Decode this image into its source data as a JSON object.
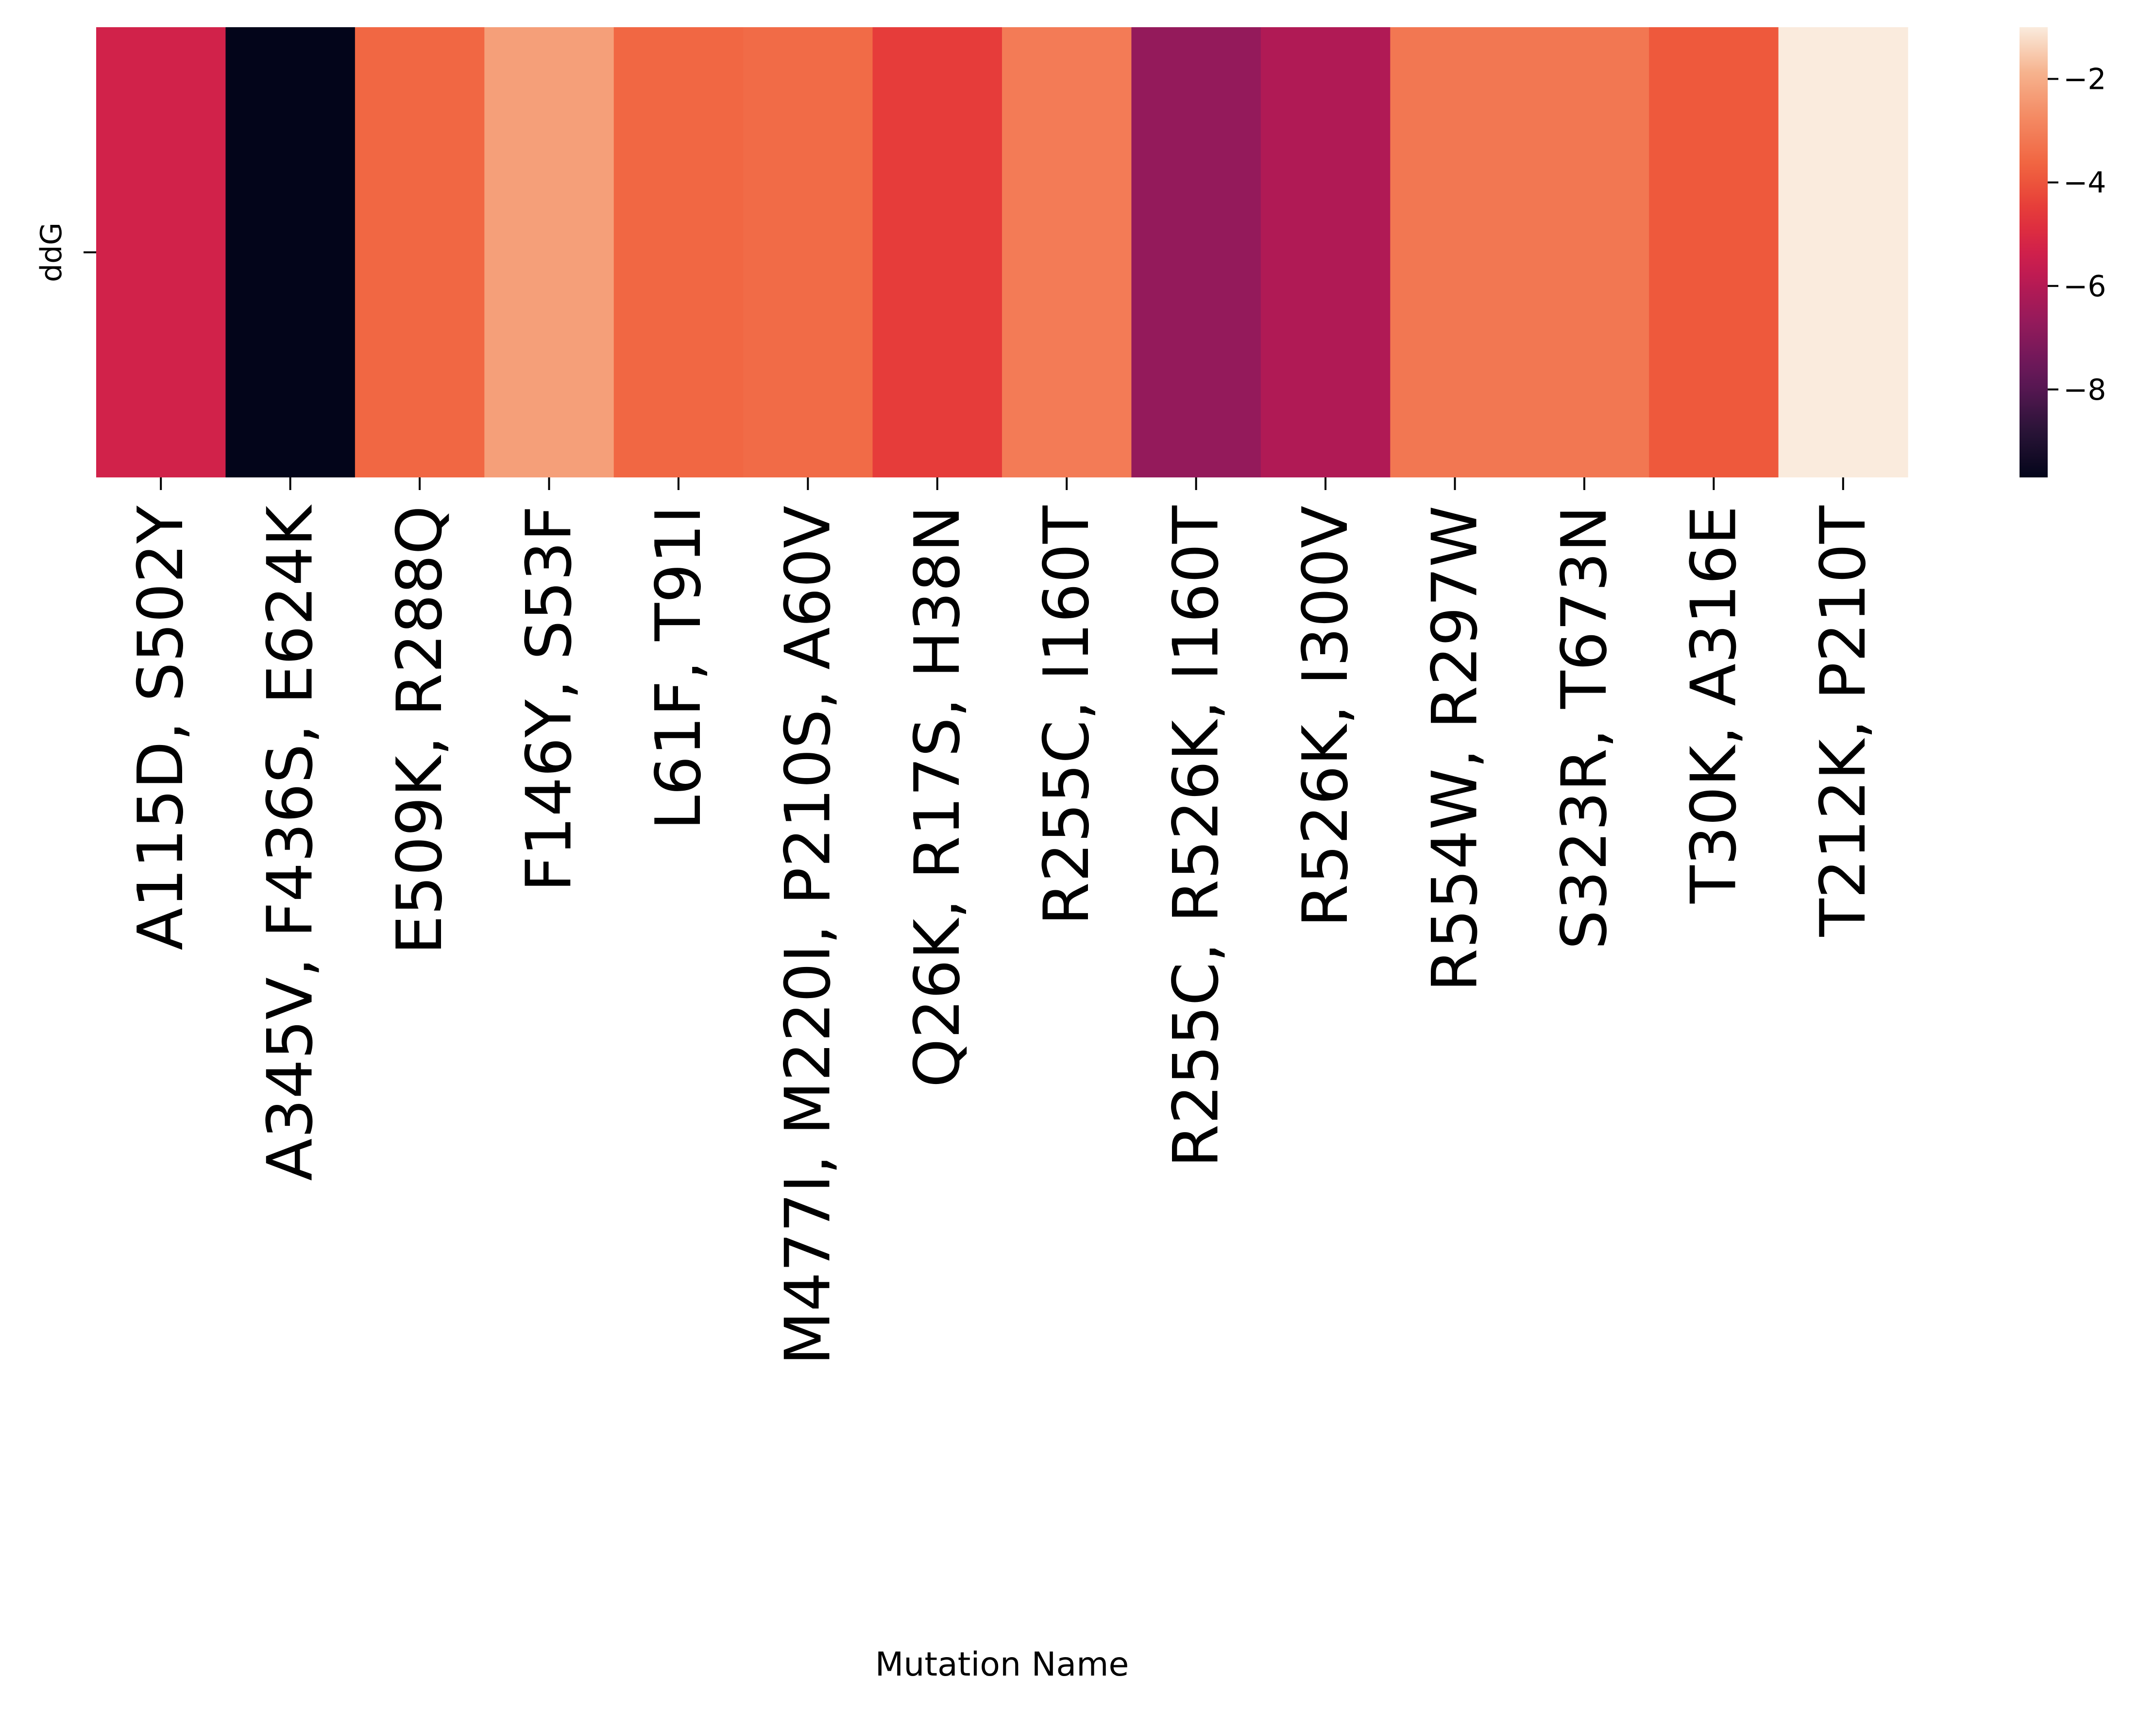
{
  "chart_data": {
    "type": "heatmap",
    "title": "",
    "xlabel": "Mutation Name",
    "ylabel": "",
    "row_labels": [
      "ddG"
    ],
    "categories": [
      "A115D, S502Y",
      "A345V, F436S, E624K",
      "E509K, R288Q",
      "F146Y, S53F",
      "L61F, T91I",
      "M477I, M220I, P210S, A60V",
      "Q26K, R17S, H38N",
      "R255C, I160T",
      "R255C, R526K, I160T",
      "R526K, I300V",
      "R554W, R297W",
      "S323R, T673N",
      "T30K, A316E",
      "T212K, P210T"
    ],
    "values": [
      -5.3,
      -9.7,
      -3.6,
      -2.3,
      -3.6,
      -3.5,
      -4.5,
      -3.1,
      -6.7,
      -6.1,
      -3.2,
      -3.2,
      -3.9,
      -1.0
    ],
    "colorbar": {
      "min": -9.7,
      "max": -1.0,
      "ticks": [
        -2,
        -4,
        -6,
        -8
      ],
      "tick_labels": [
        "−2",
        "−4",
        "−6",
        "−8"
      ],
      "colormap": "rocket"
    },
    "legend": "colorbar-right",
    "grid": false
  }
}
